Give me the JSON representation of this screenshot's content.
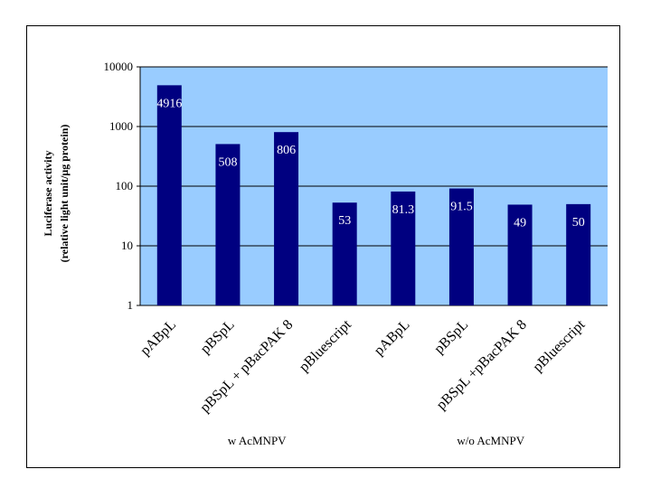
{
  "chart_data": {
    "type": "bar",
    "y_scale": "log",
    "ylim": [
      1,
      10000
    ],
    "yticks": [
      {
        "value": 1,
        "label": "1"
      },
      {
        "value": 10,
        "label": "10"
      },
      {
        "value": 100,
        "label": "100"
      },
      {
        "value": 1000,
        "label": "1000"
      },
      {
        "value": 10000,
        "label": "10000"
      }
    ],
    "ylabel_line1": "Luciferase activity",
    "ylabel_line2": "(relative light unit/μg protein)",
    "grid": true,
    "categories": [
      "pABpL",
      "pBSpL",
      "pBSpL + pBacPAK 8",
      "pBluescript",
      "pABpL",
      "pBSpL",
      "pBSpL +pBacPAK 8",
      "pBluescript"
    ],
    "values": [
      4916,
      508,
      806,
      53,
      81.3,
      91.5,
      49,
      50
    ],
    "value_labels": [
      "4916",
      "508",
      "806",
      "53",
      "81.3",
      "91.5",
      "49",
      "50"
    ],
    "groups": [
      {
        "label": "w AcMNPV",
        "category_indices": [
          0,
          1,
          2,
          3
        ]
      },
      {
        "label": "w/o AcMNPV",
        "category_indices": [
          4,
          5,
          6,
          7
        ]
      }
    ],
    "colors": {
      "bar": "#000080",
      "plot_background": "#99ccff",
      "gridline": "#000000",
      "value_label": "#ffffff"
    }
  }
}
